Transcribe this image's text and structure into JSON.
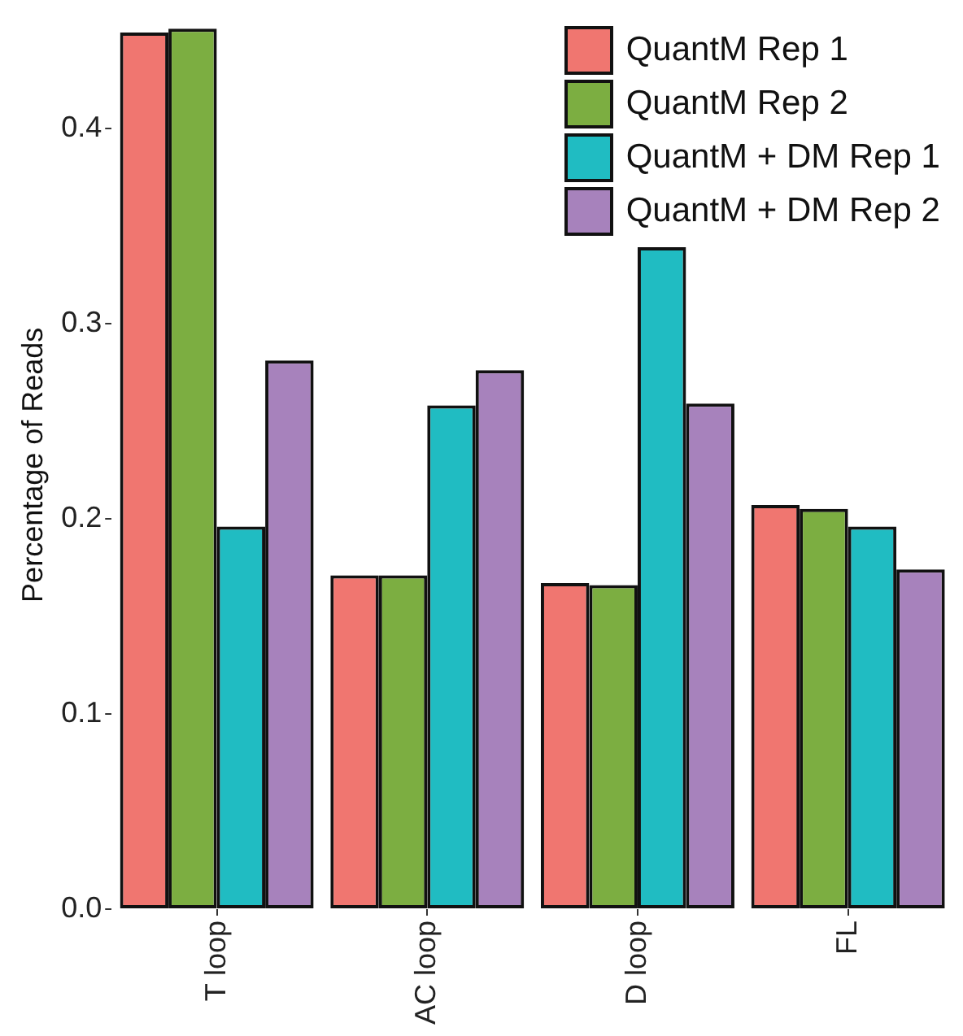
{
  "chart_data": {
    "type": "bar",
    "ylabel": "Percentage of Reads",
    "categories": [
      "T loop",
      "AC loop",
      "D loop",
      "FL"
    ],
    "series": [
      {
        "name": "QuantM Rep 1",
        "color": "#f07670",
        "values": [
          0.449,
          0.171,
          0.167,
          0.207
        ]
      },
      {
        "name": "QuantM Rep 2",
        "color": "#7cae41",
        "values": [
          0.451,
          0.171,
          0.166,
          0.205
        ]
      },
      {
        "name": "QuantM + DM Rep 1",
        "color": "#20bcc2",
        "values": [
          0.196,
          0.258,
          0.339,
          0.196
        ]
      },
      {
        "name": "QuantM + DM Rep 2",
        "color": "#a782bc",
        "values": [
          0.281,
          0.276,
          0.259,
          0.174
        ]
      }
    ],
    "ylim": [
      0,
      0.455
    ],
    "yticks": [
      {
        "value": 0,
        "label": "0.0"
      },
      {
        "value": 0.1,
        "label": "0.1"
      },
      {
        "value": 0.2,
        "label": "0.2"
      },
      {
        "value": 0.3,
        "label": "0.3"
      },
      {
        "value": 0.4,
        "label": "0.4"
      }
    ],
    "grid": false,
    "legend": "top right"
  }
}
